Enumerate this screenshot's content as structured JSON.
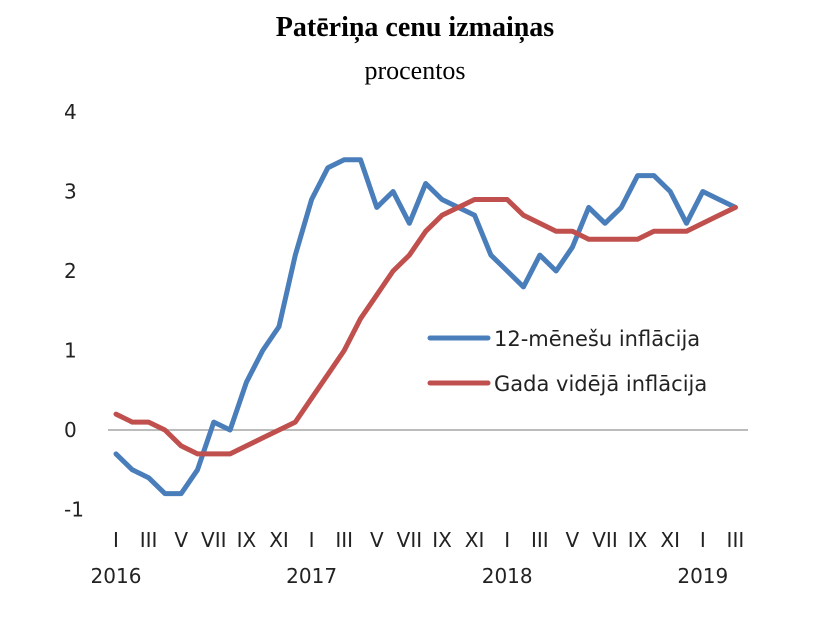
{
  "chart_data": {
    "type": "line",
    "title": "Patēriņa cenu izmaiņas",
    "subtitle": "procentos",
    "xlabel": "",
    "ylabel": "",
    "ylim": [
      -1,
      4
    ],
    "yticks": [
      "-1",
      "0",
      "1",
      "2",
      "3",
      "4"
    ],
    "grid": false,
    "zero_line": true,
    "legend_position": "center-right",
    "month_tick_labels": [
      "I",
      "III",
      "V",
      "VII",
      "IX",
      "XI",
      "I",
      "III",
      "V",
      "VII",
      "IX",
      "XI",
      "I",
      "III",
      "V",
      "VII",
      "IX",
      "XI",
      "I",
      "III"
    ],
    "year_labels": [
      "2016",
      "2017",
      "2018",
      "2019"
    ],
    "x": [
      "2016-01",
      "2016-02",
      "2016-03",
      "2016-04",
      "2016-05",
      "2016-06",
      "2016-07",
      "2016-08",
      "2016-09",
      "2016-10",
      "2016-11",
      "2016-12",
      "2017-01",
      "2017-02",
      "2017-03",
      "2017-04",
      "2017-05",
      "2017-06",
      "2017-07",
      "2017-08",
      "2017-09",
      "2017-10",
      "2017-11",
      "2017-12",
      "2018-01",
      "2018-02",
      "2018-03",
      "2018-04",
      "2018-05",
      "2018-06",
      "2018-07",
      "2018-08",
      "2018-09",
      "2018-10",
      "2018-11",
      "2018-12",
      "2019-01",
      "2019-02",
      "2019-03"
    ],
    "series": [
      {
        "name": "12-mēnešu inflācija",
        "color": "#4a7ebb",
        "values": [
          -0.3,
          -0.5,
          -0.6,
          -0.8,
          -0.8,
          -0.5,
          0.1,
          0.0,
          0.6,
          1.0,
          1.3,
          2.2,
          2.9,
          3.3,
          3.4,
          3.4,
          2.8,
          3.0,
          2.6,
          3.1,
          2.9,
          2.8,
          2.7,
          2.2,
          2.0,
          1.8,
          2.2,
          2.0,
          2.3,
          2.8,
          2.6,
          2.8,
          3.2,
          3.2,
          3.0,
          2.6,
          3.0,
          2.9,
          2.8
        ]
      },
      {
        "name": "Gada vidējā inflācija",
        "color": "#c0504d",
        "values": [
          0.2,
          0.1,
          0.1,
          0.0,
          -0.2,
          -0.3,
          -0.3,
          -0.3,
          -0.2,
          -0.1,
          0.0,
          0.1,
          0.4,
          0.7,
          1.0,
          1.4,
          1.7,
          2.0,
          2.2,
          2.5,
          2.7,
          2.8,
          2.9,
          2.9,
          2.9,
          2.7,
          2.6,
          2.5,
          2.5,
          2.4,
          2.4,
          2.4,
          2.4,
          2.5,
          2.5,
          2.5,
          2.6,
          2.7,
          2.8
        ]
      }
    ]
  }
}
